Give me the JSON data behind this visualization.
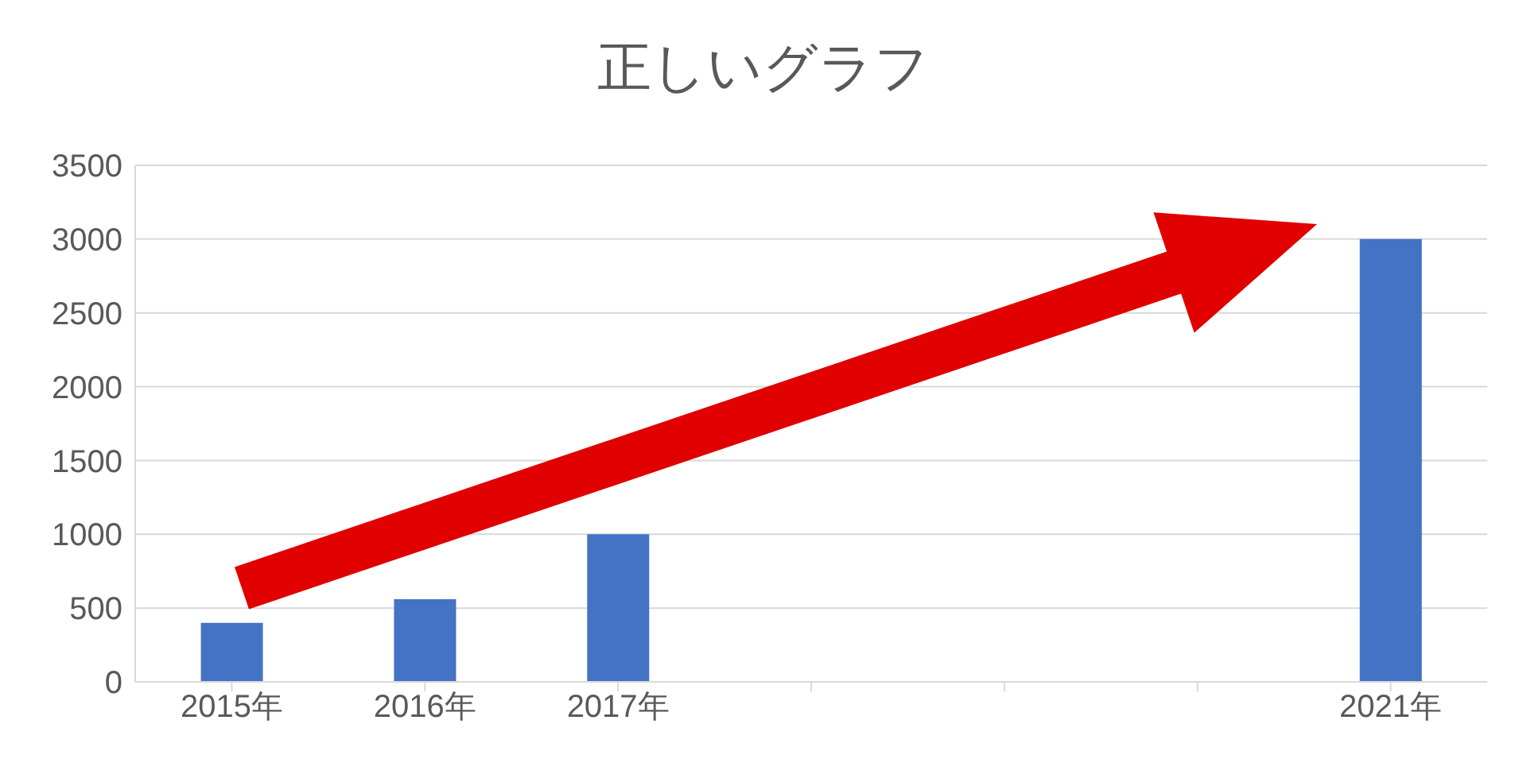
{
  "chart_data": {
    "type": "bar",
    "title": "正しいグラフ",
    "categories": [
      "2015年",
      "2016年",
      "2017年",
      null,
      null,
      null,
      "2021年"
    ],
    "values": [
      400,
      560,
      1000,
      null,
      null,
      null,
      3000
    ],
    "color": "#4472c4",
    "ylim": [
      0,
      3500
    ],
    "yticks": [
      0,
      500,
      1000,
      1500,
      2000,
      2500,
      3000,
      3500
    ],
    "grid": "y",
    "legend": false
  }
}
